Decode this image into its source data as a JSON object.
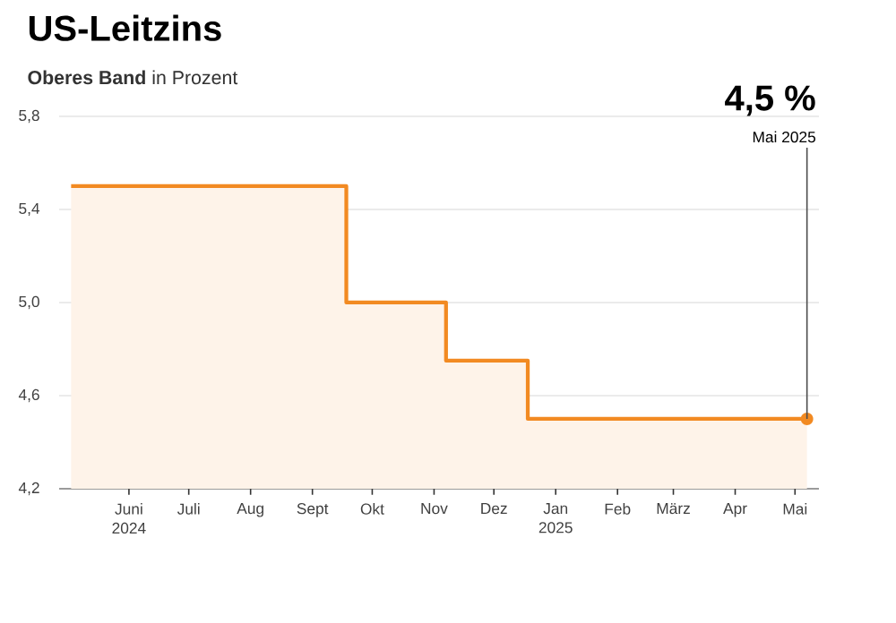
{
  "chart_data": {
    "type": "area",
    "title": "US-Leitzins",
    "subtitle": "**Oberes Band** in Prozent",
    "x": [
      "2024-05-03",
      "2024-09-18",
      "2024-09-18",
      "2024-11-07",
      "2024-11-07",
      "2024-12-18",
      "2024-12-18",
      "2025-05-07"
    ],
    "series": [
      {
        "color": "#f28a22",
        "values": [
          5.5,
          5.5,
          5.0,
          5.0,
          4.75,
          4.75,
          4.5,
          4.5
        ]
      }
    ],
    "xlim": [
      "2024-04-27",
      "2025-05-13"
    ],
    "xticks": [
      {
        "value": "2024-06-01",
        "label": "Juni 2024"
      },
      {
        "value": "2024-07-01",
        "label": "Juli"
      },
      {
        "value": "2024-08-01",
        "label": "Aug"
      },
      {
        "value": "2024-09-01",
        "label": "Sept"
      },
      {
        "value": "2024-10-01",
        "label": "Okt"
      },
      {
        "value": "2024-11-01",
        "label": "Nov"
      },
      {
        "value": "2024-12-01",
        "label": "Dez"
      },
      {
        "value": "2025-01-01",
        "label": "Jan 2025"
      },
      {
        "value": "2025-02-01",
        "label": "Feb"
      },
      {
        "value": "2025-03-01",
        "label": "März"
      },
      {
        "value": "2025-04-01",
        "label": "Apr"
      },
      {
        "value": "2025-05-01",
        "label": "Mai"
      }
    ],
    "ylim": [
      4.2,
      5.8
    ],
    "yticks": [
      {
        "value": 4.2,
        "label": "4,2"
      },
      {
        "value": 4.6,
        "label": "4,6"
      },
      {
        "value": 5.0,
        "label": "5,0"
      },
      {
        "value": 5.4,
        "label": "5,4"
      },
      {
        "value": 5.8,
        "label": "5,8"
      }
    ],
    "grid": "y",
    "annotations": [
      {
        "text": "4,5 %",
        "x": "2025-05-07",
        "y": 4.5
      },
      {
        "text": "Mai 2025",
        "x": "2025-05-07",
        "y": 4.5
      }
    ]
  }
}
